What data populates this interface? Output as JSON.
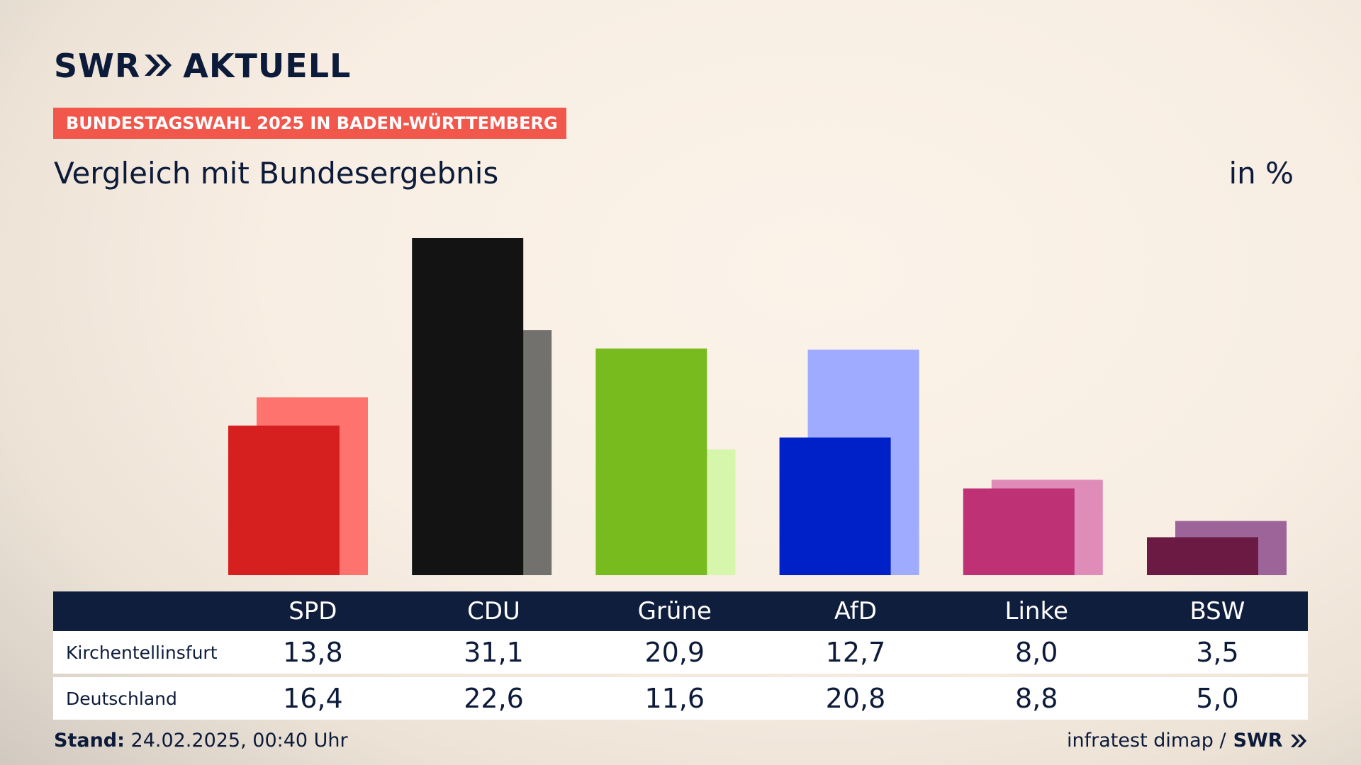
{
  "brand": {
    "logo_left": "SWR",
    "logo_right": "AKTUELL",
    "footer_logo": "SWR"
  },
  "banner": "BUNDESTAGSWAHL 2025 IN BADEN-WÜRTTEMBERG",
  "subtitle": "Vergleich mit Bundesergebnis",
  "unit": "in %",
  "colors": {
    "text": "#0d1b3a",
    "banner": "#f2574c",
    "table_header": "#0f1e3d"
  },
  "chart_data": {
    "type": "bar",
    "categories": [
      "SPD",
      "CDU",
      "Grüne",
      "AfD",
      "Linke",
      "BSW"
    ],
    "series": [
      {
        "name": "Kirchentellinsfurt",
        "values": [
          13.8,
          31.1,
          20.9,
          12.7,
          8.0,
          3.5
        ],
        "display": [
          "13,8",
          "31,1",
          "20,9",
          "12,7",
          "8,0",
          "3,5"
        ],
        "colors": [
          "#d61f1f",
          "#131313",
          "#78bb1e",
          "#0021c8",
          "#be3174",
          "#6b1a43"
        ]
      },
      {
        "name": "Deutschland",
        "values": [
          16.4,
          22.6,
          11.6,
          20.8,
          8.8,
          5.0
        ],
        "display": [
          "16,4",
          "22,6",
          "11,6",
          "20,8",
          "8,8",
          "5,0"
        ],
        "colors": [
          "#ff736e",
          "#73716e",
          "#d6f7ab",
          "#9eabff",
          "#df8cb8",
          "#9c6499"
        ]
      }
    ],
    "ylim": [
      0,
      31.1
    ],
    "grid": false
  },
  "footer": {
    "stand_label": "Stand:",
    "stand_value": "24.02.2025, 00:40 Uhr",
    "source": "infratest dimap /"
  }
}
